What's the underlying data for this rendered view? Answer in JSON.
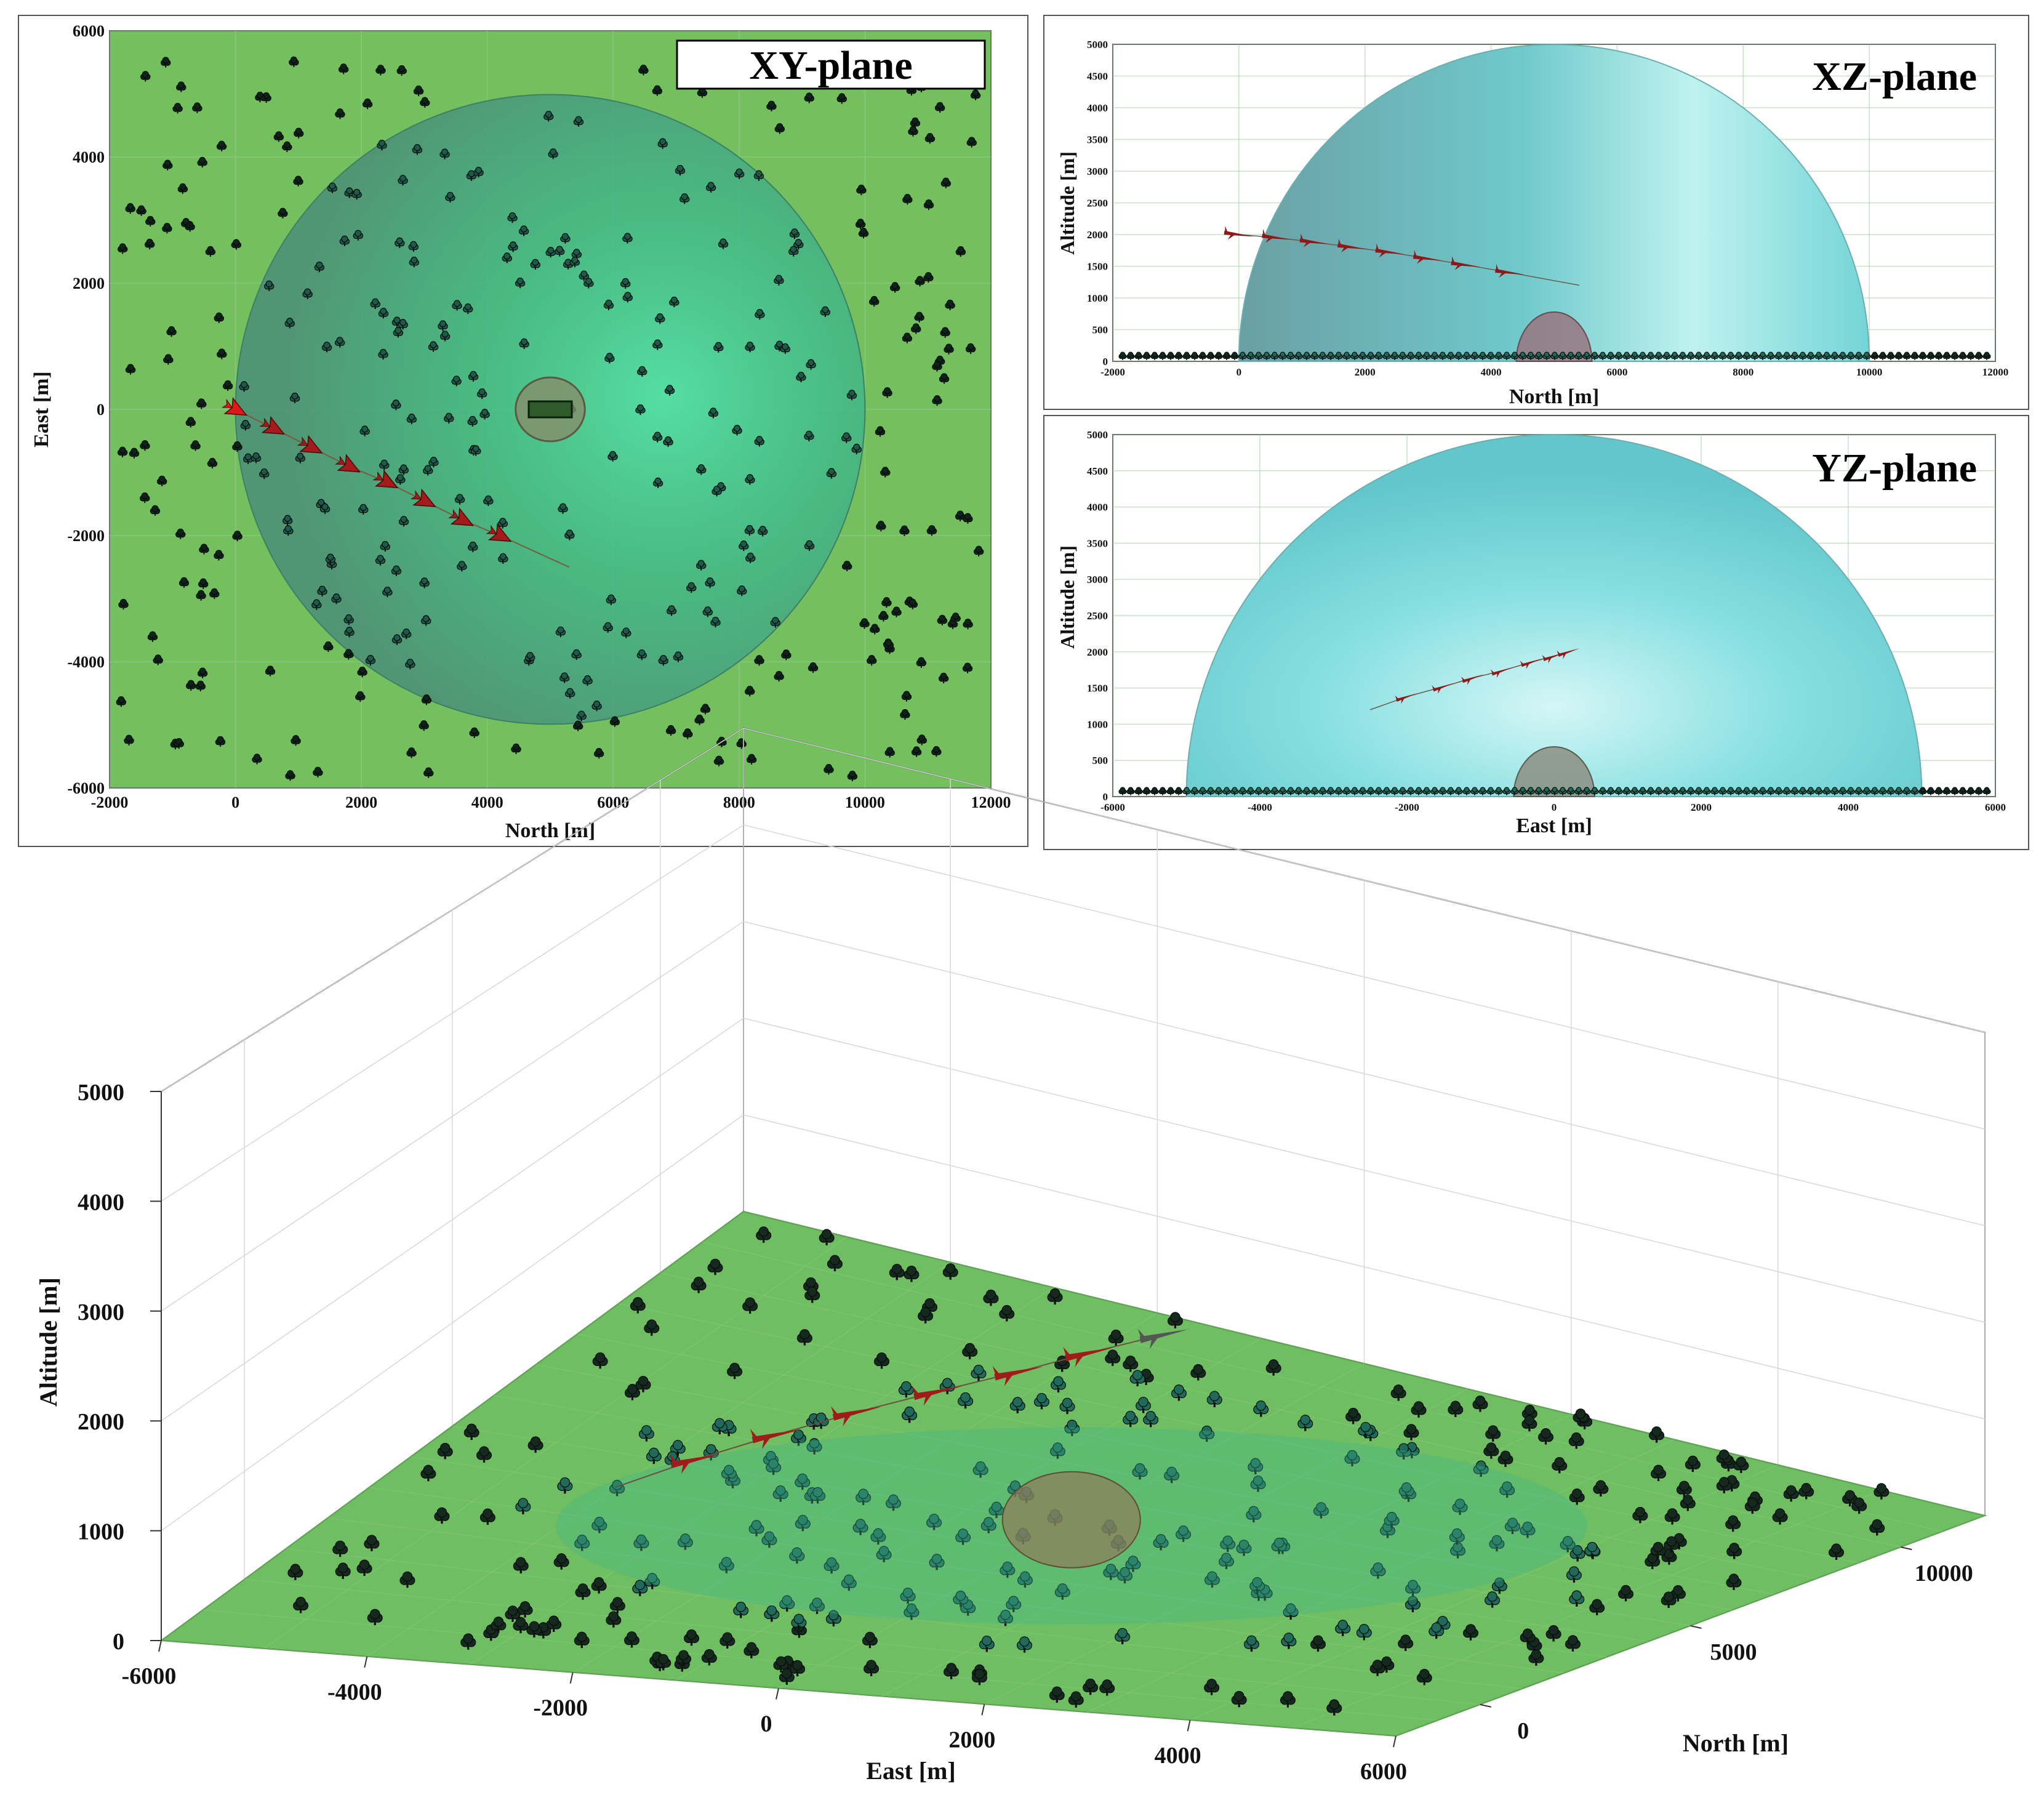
{
  "chart_data": [
    {
      "type": "scatter",
      "view": "top view",
      "title": "XY-plane",
      "xlabel": "North [m]",
      "ylabel": "East [m]",
      "xlim": [
        -2000,
        12000
      ],
      "ylim": [
        -6000,
        6000
      ],
      "xticks": [
        -2000,
        0,
        2000,
        4000,
        6000,
        8000,
        10000,
        12000
      ],
      "yticks": [
        -6000,
        -4000,
        -2000,
        0,
        2000,
        4000,
        6000
      ],
      "grid": true,
      "colors": {
        "ground": "#74c05f",
        "dome": "#3fd7a0",
        "aircraft": "#b11a1a",
        "radar_zone": "#8a8a6a",
        "trees": "#0f2a22"
      },
      "dome": {
        "center_north": 5000,
        "center_east": 0,
        "radius": 5000
      },
      "radar_site": {
        "north": 5000,
        "east": 0,
        "radius": 550
      },
      "trajectory": {
        "north": [
          0,
          600,
          1200,
          1800,
          2400,
          3000,
          3600,
          4200,
          5300
        ],
        "east": [
          0,
          -300,
          -600,
          -900,
          -1150,
          -1450,
          -1750,
          -2000,
          -2500
        ]
      }
    },
    {
      "type": "scatter",
      "view": "side view",
      "title": "XZ-plane",
      "xlabel": "North [m]",
      "ylabel": "Altitude [m]",
      "xlim": [
        -2000,
        12000
      ],
      "ylim": [
        0,
        5000
      ],
      "xticks": [
        -2000,
        0,
        2000,
        4000,
        6000,
        8000,
        10000,
        12000
      ],
      "yticks": [
        0,
        500,
        1000,
        1500,
        2000,
        2500,
        3000,
        3500,
        4000,
        4500,
        5000
      ],
      "grid": true,
      "colors": {
        "dome": "#6fd3d6",
        "aircraft": "#8f1818",
        "radar_zone": "#9a6f7a"
      },
      "dome": {
        "center_north": 5000,
        "radius": 5000
      },
      "trajectory": {
        "north": [
          0,
          600,
          1200,
          1800,
          2400,
          3000,
          3600,
          4300,
          5400
        ],
        "altitude": [
          2000,
          1950,
          1880,
          1800,
          1720,
          1620,
          1520,
          1400,
          1200
        ]
      }
    },
    {
      "type": "scatter",
      "view": "side view",
      "title": "YZ-plane",
      "xlabel": "East [m]",
      "ylabel": "Altitude [m]",
      "xlim": [
        -6000,
        6000
      ],
      "ylim": [
        0,
        5000
      ],
      "xticks": [
        -6000,
        -4000,
        -2000,
        0,
        2000,
        4000,
        6000
      ],
      "yticks": [
        0,
        500,
        1000,
        1500,
        2000,
        2500,
        3000,
        3500,
        4000,
        4500,
        5000
      ],
      "grid": true,
      "colors": {
        "dome": "#6fd3d6",
        "aircraft": "#8f1818",
        "radar_zone": "#8a8a7a"
      },
      "dome": {
        "center_east": 0,
        "radius": 5000
      },
      "trajectory": {
        "east": [
          -2500,
          -2000,
          -1500,
          -1100,
          -700,
          -300,
          0,
          200
        ],
        "altitude": [
          1200,
          1380,
          1520,
          1640,
          1740,
          1860,
          1940,
          2000
        ]
      }
    },
    {
      "type": "scatter",
      "view": "3-D view",
      "xlabel": "East [m]",
      "ylabel": "North [m]",
      "zlabel": "Altitude [m]",
      "xlim": [
        -6000,
        6000
      ],
      "ylim": [
        -2000,
        12000
      ],
      "zlim": [
        0,
        5000
      ],
      "xticks": [
        -6000,
        -4000,
        -2000,
        0,
        2000,
        4000,
        6000
      ],
      "yticks": [
        0,
        5000,
        10000
      ],
      "zticks": [
        0,
        1000,
        2000,
        3000,
        4000,
        5000
      ],
      "grid": true,
      "colors": {
        "ground": "#6fbf62",
        "dome": "#66d2d3",
        "aircraft": "#a21b1b",
        "radar_zone": "#8f7a5a",
        "trees": "#1b3a33"
      }
    }
  ]
}
